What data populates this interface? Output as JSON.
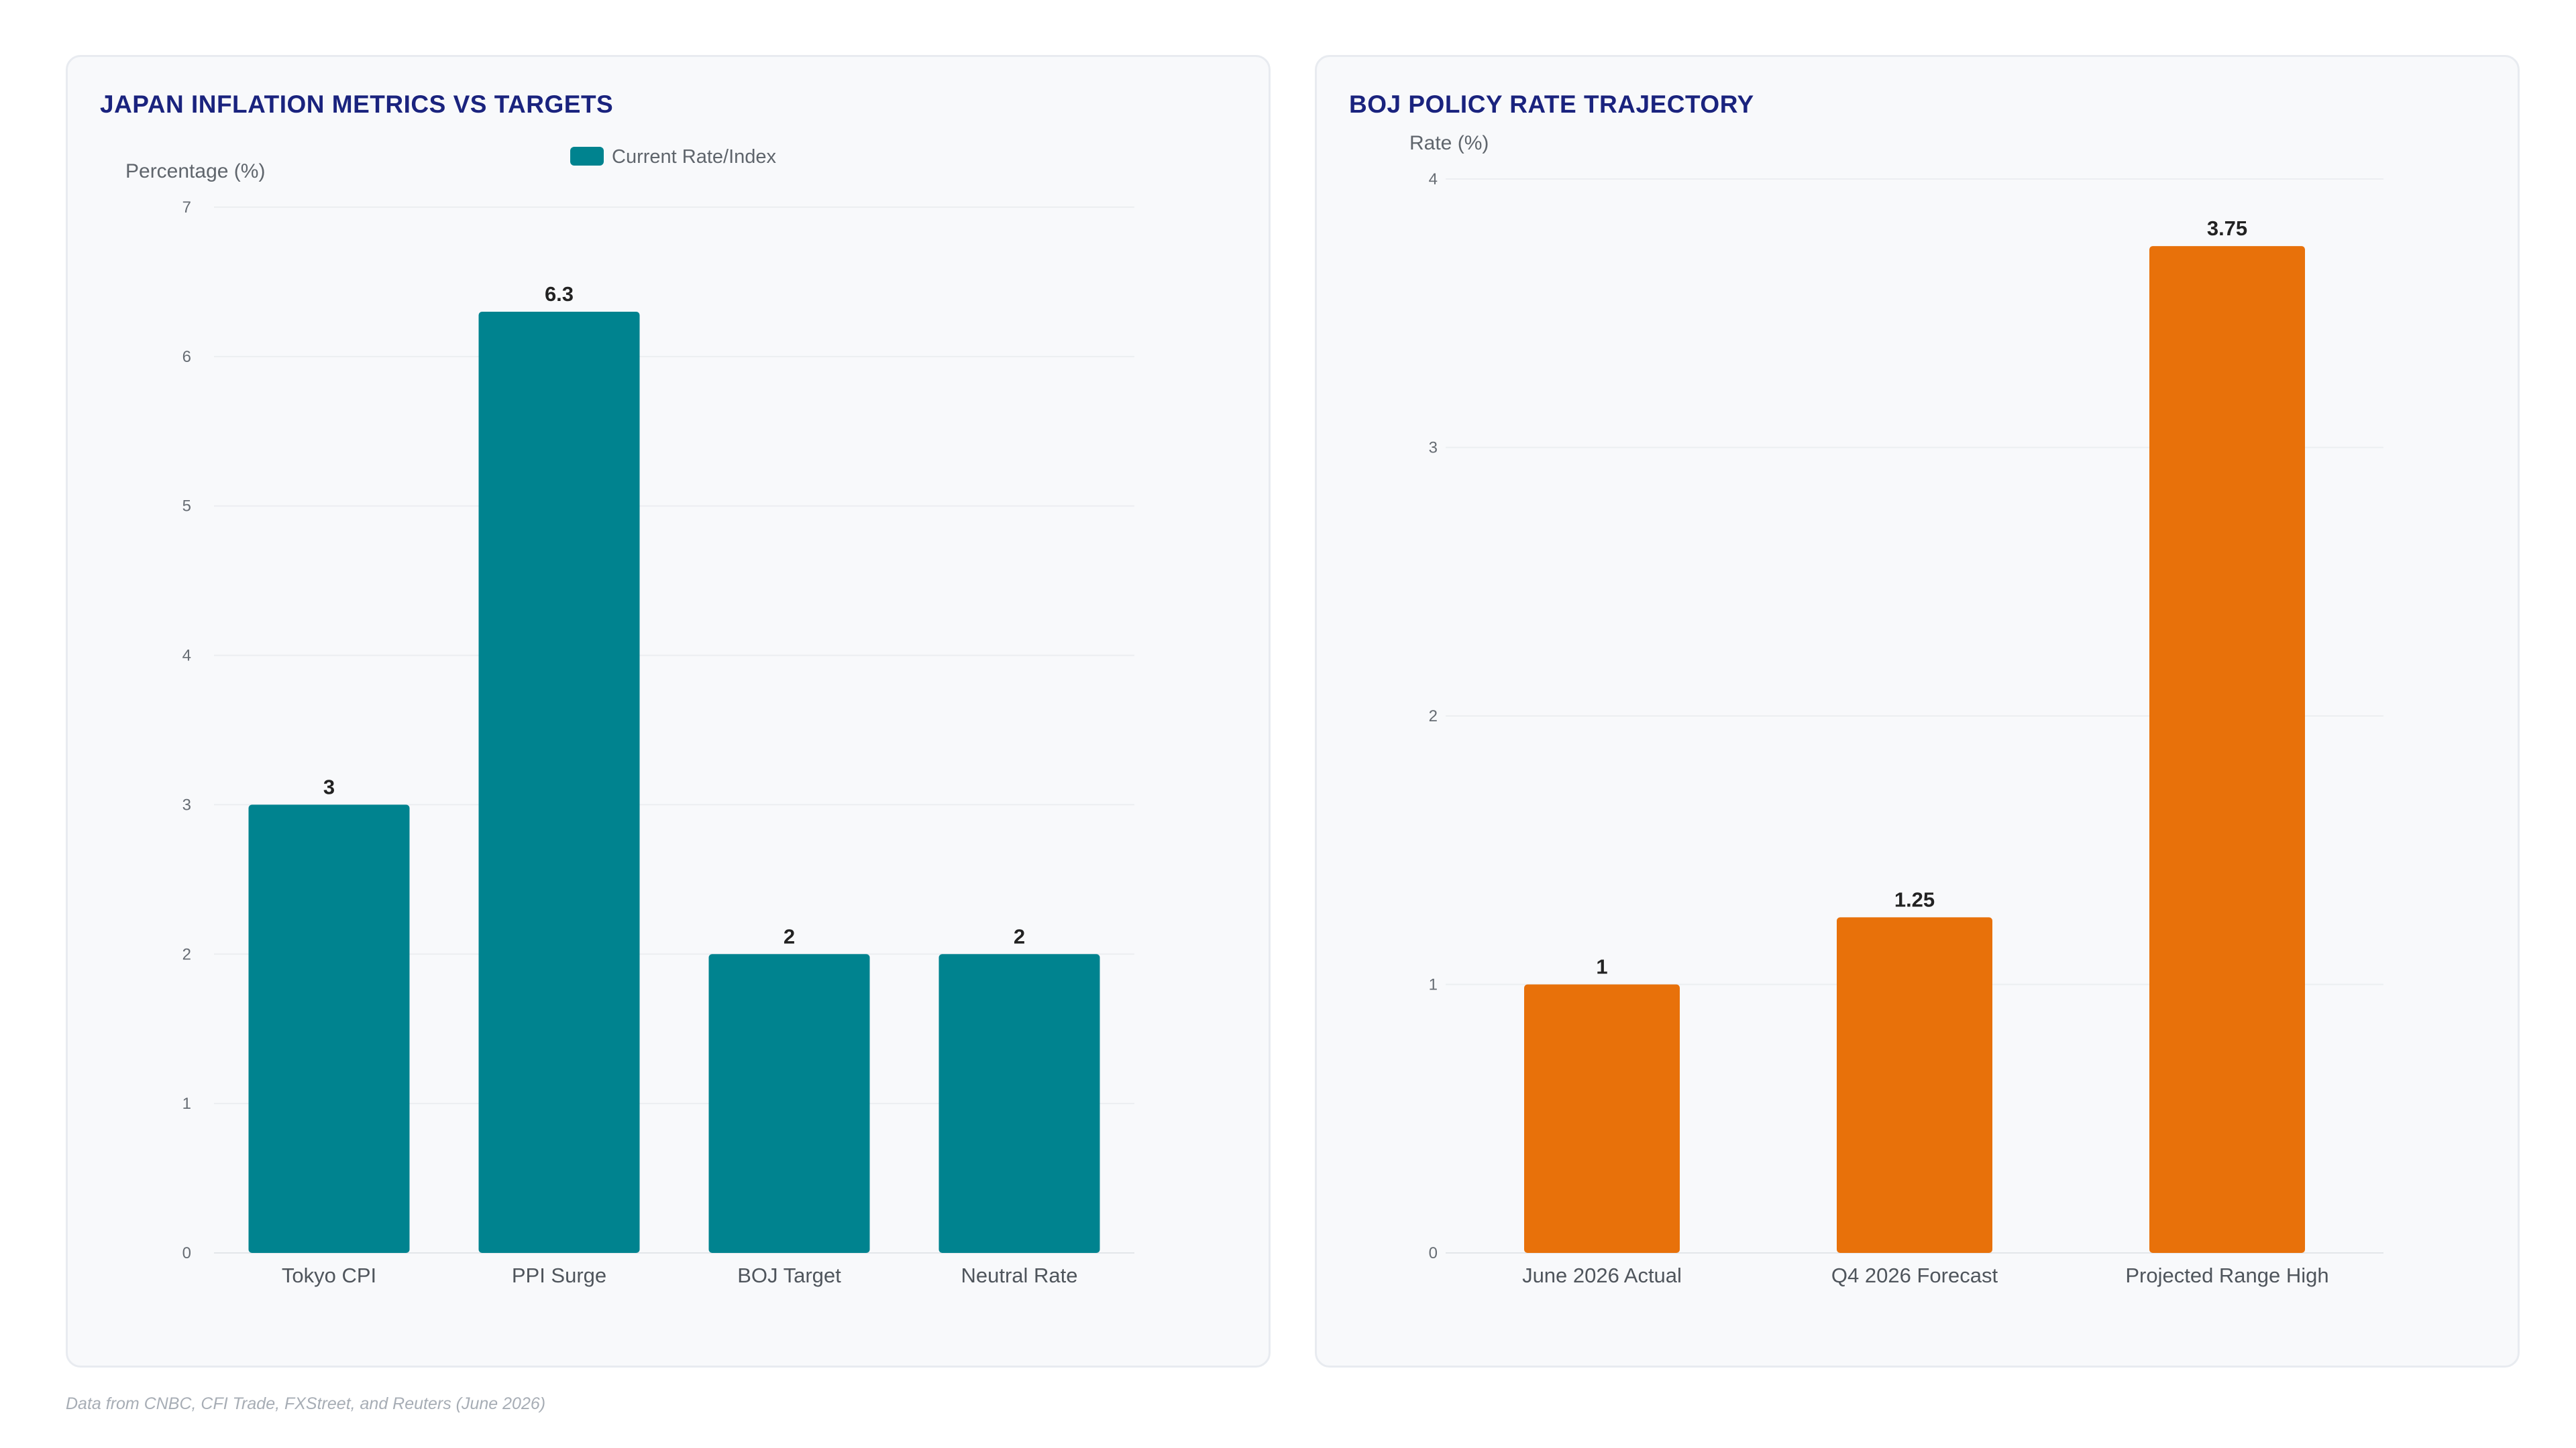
{
  "footnote": "Data from CNBC, CFI Trade, FXStreet, and Reuters (June 2026)",
  "chart_data": [
    {
      "type": "bar",
      "title": "JAPAN INFLATION METRICS VS TARGETS",
      "ylabel": "Percentage (%)",
      "xlabel": "",
      "categories": [
        "Tokyo CPI",
        "PPI Surge",
        "BOJ Target",
        "Neutral Rate"
      ],
      "series": [
        {
          "name": "Current Rate/Index",
          "values": [
            3,
            6.3,
            2,
            2
          ],
          "color": "#00838f"
        }
      ],
      "ylim": [
        0,
        7
      ],
      "yticks": [
        "0",
        "1",
        "2",
        "3",
        "4",
        "5",
        "6",
        "7"
      ],
      "data_labels": [
        "3",
        "6.3",
        "2",
        "2"
      ],
      "legend": "top-center",
      "grid": true
    },
    {
      "type": "bar",
      "title": "BOJ POLICY RATE TRAJECTORY",
      "ylabel": "Rate (%)",
      "xlabel": "",
      "categories": [
        "June 2026 Actual",
        "Q4 2026 Forecast",
        "Projected Range High"
      ],
      "series": [
        {
          "values": [
            1,
            1.25,
            3.75
          ],
          "color": "#e8710a"
        }
      ],
      "ylim": [
        0,
        4
      ],
      "yticks": [
        "0",
        "1",
        "2",
        "3",
        "4"
      ],
      "data_labels": [
        "1",
        "1.25",
        "3.75"
      ],
      "legend": "none",
      "grid": true
    }
  ]
}
